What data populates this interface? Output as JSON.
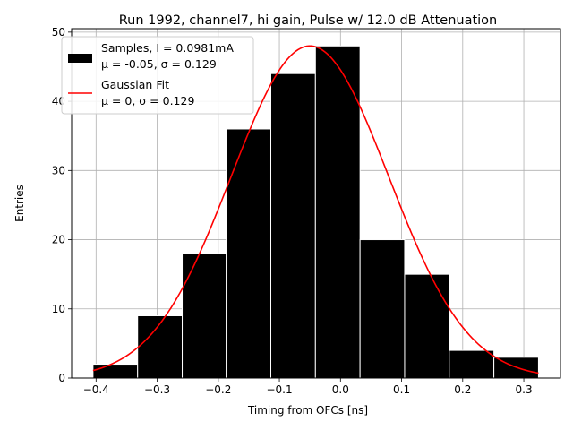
{
  "chart_data": {
    "type": "bar",
    "title": "Run 1992, channel7, hi gain, Pulse w/ 12.0 dB Attenuation",
    "xlabel": "Timing from OFCs [ns]",
    "ylabel": "Entries",
    "xlim": [
      -0.44,
      0.36
    ],
    "ylim": [
      0,
      50.5
    ],
    "grid": true,
    "legend_position": "top-left",
    "x_ticks": [
      "-0.4",
      "-0.3",
      "-0.2",
      "-0.1",
      "0.0",
      "0.1",
      "0.2",
      "0.3"
    ],
    "y_ticks": [
      "0",
      "10",
      "20",
      "30",
      "40",
      "50"
    ],
    "bins": [
      {
        "left": -0.405,
        "right": -0.332,
        "count": 2
      },
      {
        "left": -0.332,
        "right": -0.259,
        "count": 9
      },
      {
        "left": -0.259,
        "right": -0.187,
        "count": 18
      },
      {
        "left": -0.187,
        "right": -0.114,
        "count": 36
      },
      {
        "left": -0.114,
        "right": -0.041,
        "count": 44
      },
      {
        "left": -0.041,
        "right": 0.032,
        "count": 48
      },
      {
        "left": 0.032,
        "right": 0.105,
        "count": 20
      },
      {
        "left": 0.105,
        "right": 0.178,
        "count": 15
      },
      {
        "left": 0.178,
        "right": 0.251,
        "count": 4
      },
      {
        "left": 0.251,
        "right": 0.324,
        "count": 3
      }
    ],
    "fit": {
      "mu": -0.05,
      "sigma": 0.129,
      "amplitude": 48,
      "x_range": [
        -0.405,
        0.324
      ]
    },
    "series": [
      {
        "name": "Samples, I = 0.0981mA",
        "stats": "μ = -0.05, σ = 0.129",
        "color": "#000000",
        "kind": "histogram"
      },
      {
        "name": "Gaussian Fit",
        "stats": "μ = 0, σ = 0.129",
        "color": "#ff0000",
        "kind": "line"
      }
    ]
  }
}
